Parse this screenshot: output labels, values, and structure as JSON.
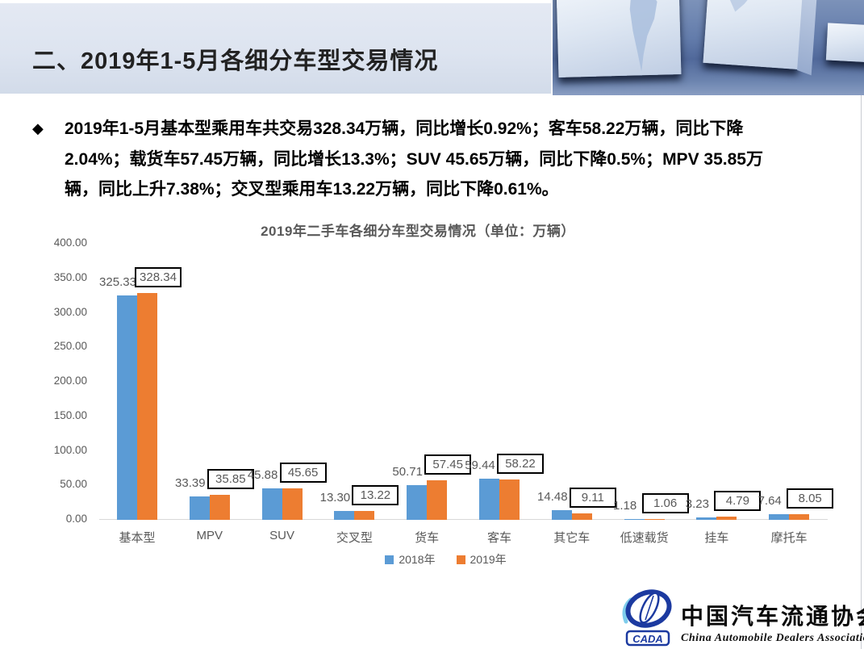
{
  "header": {
    "title": "二、2019年1-5月各细分车型交易情况"
  },
  "bullet": {
    "icon": "◆",
    "lines": [
      "2019年1-5月基本型乘用车共交易328.34万辆，同比增长0.92%；客车58.22万辆，同比下降",
      "2.04%；载货车57.45万辆，同比增长13.3%；SUV 45.65万辆，同比下降0.5%；MPV 35.85万",
      "辆，同比上升7.38%；交叉型乘用车13.22万辆，同比下降0.61%。"
    ]
  },
  "chart_data": {
    "type": "bar",
    "title": "2019年二手车各细分车型交易情况（单位：万辆）",
    "categories": [
      "基本型",
      "MPV",
      "SUV",
      "交叉型",
      "货车",
      "客车",
      "其它车",
      "低速载货",
      "挂车",
      "摩托车"
    ],
    "series": [
      {
        "name": "2018年",
        "color": "#5B9BD5",
        "values": [
          325.33,
          33.39,
          45.88,
          13.3,
          50.71,
          59.44,
          14.48,
          1.18,
          3.23,
          7.64
        ],
        "labels_boxed": false
      },
      {
        "name": "2019年",
        "color": "#ED7D31",
        "values": [
          328.34,
          35.85,
          45.65,
          13.22,
          57.45,
          58.22,
          9.11,
          1.06,
          4.79,
          8.05
        ],
        "labels_boxed": true
      }
    ],
    "y_ticks": [
      "0.00",
      "50.00",
      "100.00",
      "150.00",
      "200.00",
      "250.00",
      "300.00",
      "350.00",
      "400.00"
    ],
    "ylim": [
      0,
      400
    ],
    "grid": false,
    "legend_position": "bottom",
    "axis_text_color": "#595959",
    "axis_line_color": "#D9D9D9"
  },
  "logo": {
    "acronym": "CADA",
    "chinese": "中国汽车流通协会",
    "english": "China Automobile Dealers Association"
  }
}
